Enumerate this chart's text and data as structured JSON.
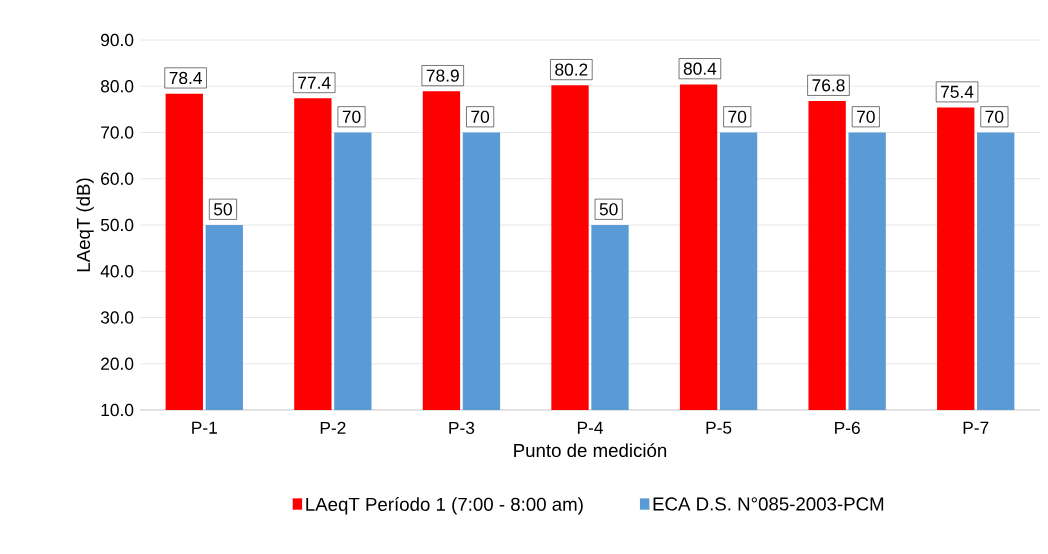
{
  "chart_data": {
    "type": "bar",
    "xlabel": "Punto de medición",
    "ylabel": "LAeqT (dB)",
    "categories": [
      "P-1",
      "P-2",
      "P-3",
      "P-4",
      "P-5",
      "P-6",
      "P-7"
    ],
    "series": [
      {
        "name": "LAeqT Período 1 (7:00 - 8:00 am)",
        "color": "#ff0000",
        "values": [
          78.4,
          77.4,
          78.9,
          80.2,
          80.4,
          76.8,
          75.4
        ]
      },
      {
        "name": "ECA D.S. N°085-2003-PCM",
        "color": "#5b9bd5",
        "values": [
          50,
          70,
          70,
          50,
          70,
          70,
          70
        ]
      }
    ],
    "ylim": [
      10,
      90
    ],
    "yticks": [
      {
        "value": 10,
        "label": "10.0"
      },
      {
        "value": 20,
        "label": "20.0"
      },
      {
        "value": 30,
        "label": "30.0"
      },
      {
        "value": 40,
        "label": "40.0"
      },
      {
        "value": 50,
        "label": "50.0"
      },
      {
        "value": 60,
        "label": "60.0"
      },
      {
        "value": 70,
        "label": "70.0"
      },
      {
        "value": 80,
        "label": "80.0"
      },
      {
        "value": 90,
        "label": "90.0"
      }
    ],
    "grid": "y",
    "legend": "bottom",
    "data_labels": true
  }
}
